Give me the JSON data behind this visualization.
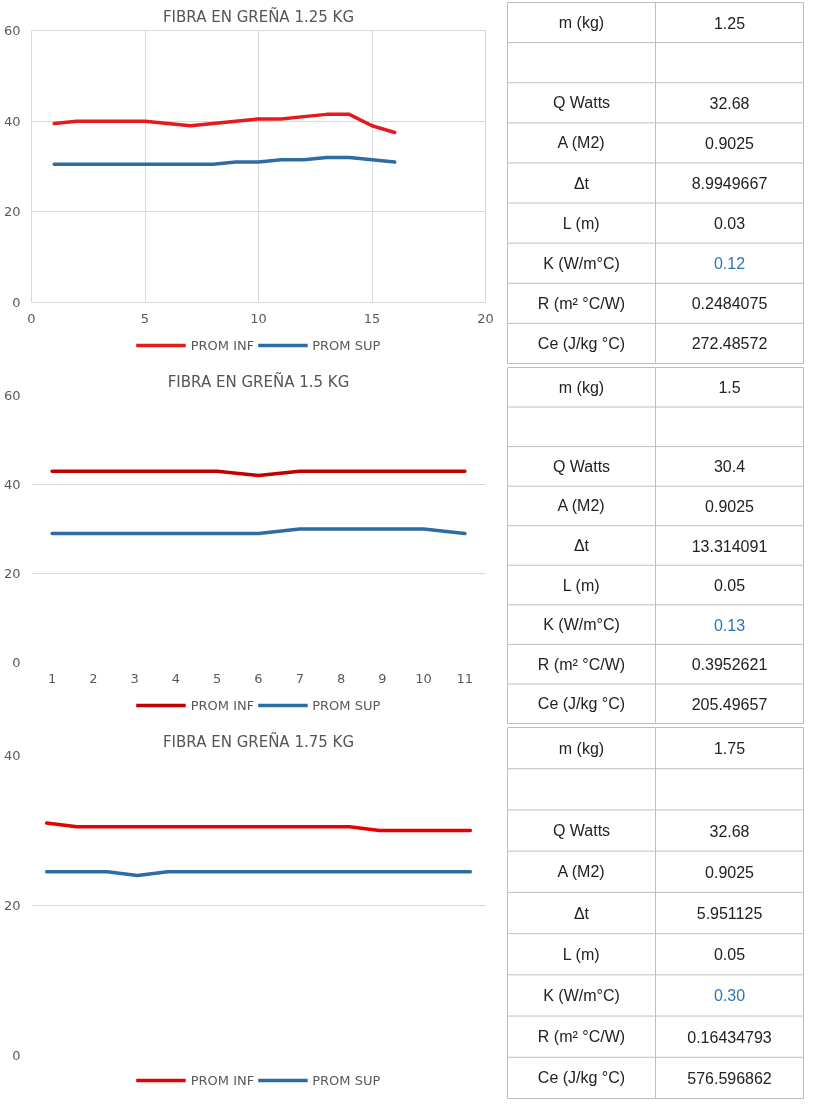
{
  "chart_data": [
    {
      "type": "line",
      "title": "FIBRA EN GREÑA 1.25 KG",
      "x": [
        1,
        2,
        3,
        4,
        5,
        6,
        7,
        8,
        9,
        10,
        11,
        12,
        13,
        14,
        15,
        16
      ],
      "xlim": [
        0,
        20
      ],
      "xticks": [
        0,
        5,
        10,
        15,
        20
      ],
      "ylim": [
        0,
        60
      ],
      "yticks": [
        0,
        20,
        40,
        60
      ],
      "grid": true,
      "legend": "bottom",
      "series": [
        {
          "name": "PROM INF",
          "color": "#e41a1c",
          "values": [
            39.5,
            40,
            40,
            40,
            40,
            39.5,
            39,
            39.5,
            40,
            40.5,
            40.5,
            41,
            41.5,
            41.5,
            39,
            37.5
          ]
        },
        {
          "name": "PROM SUP",
          "color": "#2e6da4",
          "values": [
            30.5,
            30.5,
            30.5,
            30.5,
            30.5,
            30.5,
            30.5,
            30.5,
            31,
            31,
            31.5,
            31.5,
            32,
            32,
            31.5,
            31
          ]
        }
      ]
    },
    {
      "type": "other",
      "categories": [
        "m (kg)",
        null,
        "Q Watts",
        "A (M2)",
        "Δt",
        "L (m)",
        "K (W/m°C)",
        "R (m² °C/W)",
        "Ce (J/kg °C)"
      ],
      "value_labels": [
        "1.25",
        null,
        "32.68",
        "0.9025",
        "8.9949667",
        "0.03",
        "0.12",
        "0.2484075",
        "272.48572"
      ],
      "colors": [
        "#222222",
        "#222222",
        "#222222",
        "#222222",
        "#222222",
        "#222222",
        "#2e75b6",
        "#222222",
        "#222222"
      ]
    },
    {
      "type": "line",
      "title": "FIBRA EN GREÑA 1.5 KG",
      "categories": [
        "1",
        "2",
        "3",
        "4",
        "5",
        "6",
        "7",
        "8",
        "9",
        "10",
        "11"
      ],
      "ylim": [
        0,
        60
      ],
      "yticks": [
        0,
        20,
        40,
        60
      ],
      "grid": "y",
      "legend": "bottom",
      "series": [
        {
          "name": "PROM INF",
          "color": "#c00000",
          "values": [
            43,
            43,
            43,
            43,
            43,
            42,
            43,
            43,
            43,
            43,
            43
          ]
        },
        {
          "name": "PROM SUP",
          "color": "#2e6da4",
          "values": [
            29,
            29,
            29,
            29,
            29,
            29,
            30,
            30,
            30,
            30,
            29
          ]
        }
      ]
    },
    {
      "type": "other",
      "categories": [
        "m (kg)",
        null,
        "Q Watts",
        "A (M2)",
        "Δt",
        "L (m)",
        "K (W/m°C)",
        "R (m² °C/W)",
        "Ce (J/kg °C)"
      ],
      "value_labels": [
        "1.5",
        null,
        "30.4",
        "0.9025",
        "13.314091",
        "0.05",
        "0.13",
        "0.3952621",
        "205.49657"
      ],
      "colors": [
        "#222222",
        "#222222",
        "#222222",
        "#222222",
        "#222222",
        "#222222",
        "#2e75b6",
        "#222222",
        "#222222"
      ]
    },
    {
      "type": "line",
      "title": "FIBRA EN GREÑA 1.75 KG",
      "categories": [
        null,
        null,
        null,
        null,
        null,
        null,
        null,
        null,
        null,
        null,
        null,
        null,
        null,
        null,
        null
      ],
      "ylim": [
        0,
        40
      ],
      "yticks": [
        0,
        20,
        40
      ],
      "grid": "y",
      "legend": "bottom",
      "tick_labels": "y",
      "series": [
        {
          "name": "PROM INF",
          "color": "#e60000",
          "values": [
            31,
            30.5,
            30.5,
            30.5,
            30.5,
            30.5,
            30.5,
            30.5,
            30.5,
            30.5,
            30.5,
            30,
            30,
            30,
            30
          ]
        },
        {
          "name": "PROM SUP",
          "color": "#2e6da4",
          "values": [
            24.5,
            24.5,
            24.5,
            24,
            24.5,
            24.5,
            24.5,
            24.5,
            24.5,
            24.5,
            24.5,
            24.5,
            24.5,
            24.5,
            24.5
          ]
        }
      ]
    },
    {
      "type": "other",
      "categories": [
        "m (kg)",
        null,
        "Q Watts",
        "A (M2)",
        "Δt",
        "L (m)",
        "K (W/m°C)",
        "R (m² °C/W)",
        "Ce (J/kg °C)"
      ],
      "value_labels": [
        "1.75",
        null,
        "32.68",
        "0.9025",
        "5.951125",
        "0.05",
        "0.30",
        "0.16434793",
        "576.596862"
      ],
      "colors": [
        "#222222",
        "#222222",
        "#222222",
        "#222222",
        "#222222",
        "#222222",
        "#2e75b6",
        "#222222",
        "#222222"
      ]
    }
  ]
}
